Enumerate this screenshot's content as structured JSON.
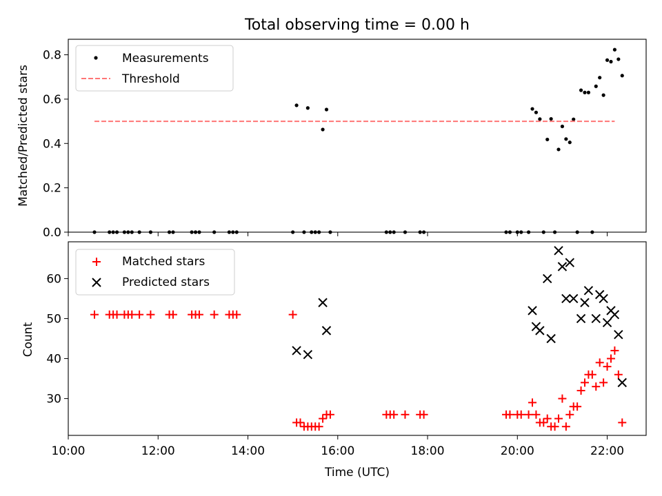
{
  "chart_data": [
    {
      "type": "scatter",
      "title": "Total observing time = 0.00 h",
      "xlabel": "",
      "ylabel": "Matched/Predicted stars",
      "xlim": [
        "10:00",
        "22:52"
      ],
      "ylim": [
        0,
        0.87
      ],
      "yticks": [
        0.0,
        0.2,
        0.4,
        0.6,
        0.8
      ],
      "ytick_labels": [
        "0.0",
        "0.2",
        "0.4",
        "0.6",
        "0.8"
      ],
      "legend_position": "upper left",
      "colors": {
        "measurements": "#000000",
        "threshold": "#ff7575"
      },
      "series": [
        {
          "name": "Measurements",
          "kind": "scatter",
          "marker": "dot",
          "points": [
            [
              "10:35",
              0
            ],
            [
              "10:55",
              0
            ],
            [
              "11:00",
              0
            ],
            [
              "11:05",
              0
            ],
            [
              "11:15",
              0
            ],
            [
              "11:20",
              0
            ],
            [
              "11:25",
              0
            ],
            [
              "11:35",
              0
            ],
            [
              "11:50",
              0
            ],
            [
              "12:15",
              0
            ],
            [
              "12:20",
              0
            ],
            [
              "12:45",
              0
            ],
            [
              "12:50",
              0
            ],
            [
              "12:55",
              0
            ],
            [
              "13:15",
              0
            ],
            [
              "13:35",
              0
            ],
            [
              "13:40",
              0
            ],
            [
              "13:45",
              0
            ],
            [
              "15:00",
              0
            ],
            [
              "15:05",
              0.572
            ],
            [
              "15:15",
              0
            ],
            [
              "15:20",
              0.56
            ],
            [
              "15:25",
              0
            ],
            [
              "15:30",
              0
            ],
            [
              "15:35",
              0
            ],
            [
              "15:40",
              0.463
            ],
            [
              "15:45",
              0.553
            ],
            [
              "15:50",
              0
            ],
            [
              "17:05",
              0
            ],
            [
              "17:10",
              0
            ],
            [
              "17:15",
              0
            ],
            [
              "17:30",
              0
            ],
            [
              "17:50",
              0
            ],
            [
              "17:55",
              0
            ],
            [
              "19:45",
              0
            ],
            [
              "19:50",
              0
            ],
            [
              "20:00",
              0
            ],
            [
              "20:05",
              0
            ],
            [
              "20:15",
              0
            ],
            [
              "20:20",
              0.556
            ],
            [
              "20:25",
              0.54
            ],
            [
              "20:30",
              0.51
            ],
            [
              "20:35",
              0
            ],
            [
              "20:40",
              0.418
            ],
            [
              "20:45",
              0.511
            ],
            [
              "20:50",
              0
            ],
            [
              "20:55",
              0.373
            ],
            [
              "21:00",
              0.477
            ],
            [
              "21:05",
              0.42
            ],
            [
              "21:10",
              0.405
            ],
            [
              "21:15",
              0.509
            ],
            [
              "21:20",
              0
            ],
            [
              "21:25",
              0.64
            ],
            [
              "21:30",
              0.63
            ],
            [
              "21:35",
              0.63
            ],
            [
              "21:40",
              0
            ],
            [
              "21:45",
              0.658
            ],
            [
              "21:50",
              0.697
            ],
            [
              "21:55",
              0.618
            ],
            [
              "22:00",
              0.776
            ],
            [
              "22:05",
              0.769
            ],
            [
              "22:10",
              0.823
            ],
            [
              "22:15",
              0.78
            ],
            [
              "22:20",
              0.706
            ]
          ]
        },
        {
          "name": "Threshold",
          "kind": "line",
          "style": "dashed",
          "points": [
            [
              "10:35",
              0.5
            ],
            [
              "22:10",
              0.5
            ]
          ]
        }
      ]
    },
    {
      "type": "scatter",
      "title": "",
      "xlabel": "Time (UTC)",
      "ylabel": "Count",
      "xlim": [
        "10:00",
        "22:52"
      ],
      "ylim": [
        20.8,
        69.2
      ],
      "yticks": [
        30,
        40,
        50,
        60
      ],
      "ytick_labels": [
        "30",
        "40",
        "50",
        "60"
      ],
      "xticks": [
        "10:00",
        "12:00",
        "14:00",
        "16:00",
        "18:00",
        "20:00",
        "22:00"
      ],
      "xtick_labels": [
        "10:00",
        "12:00",
        "14:00",
        "16:00",
        "18:00",
        "20:00",
        "22:00"
      ],
      "legend_position": "upper left",
      "colors": {
        "matched": "#ff0000",
        "predicted": "#000000"
      },
      "series": [
        {
          "name": "Matched stars",
          "kind": "scatter",
          "marker": "plus",
          "points": [
            [
              "10:35",
              51
            ],
            [
              "10:55",
              51
            ],
            [
              "11:00",
              51
            ],
            [
              "11:05",
              51
            ],
            [
              "11:15",
              51
            ],
            [
              "11:20",
              51
            ],
            [
              "11:25",
              51
            ],
            [
              "11:35",
              51
            ],
            [
              "11:50",
              51
            ],
            [
              "12:15",
              51
            ],
            [
              "12:20",
              51
            ],
            [
              "12:45",
              51
            ],
            [
              "12:50",
              51
            ],
            [
              "12:55",
              51
            ],
            [
              "13:15",
              51
            ],
            [
              "13:35",
              51
            ],
            [
              "13:40",
              51
            ],
            [
              "13:45",
              51
            ],
            [
              "15:00",
              51
            ],
            [
              "15:05",
              24
            ],
            [
              "15:10",
              24
            ],
            [
              "15:15",
              23
            ],
            [
              "15:20",
              23
            ],
            [
              "15:25",
              23
            ],
            [
              "15:30",
              23
            ],
            [
              "15:35",
              23
            ],
            [
              "15:40",
              25
            ],
            [
              "15:45",
              26
            ],
            [
              "15:50",
              26
            ],
            [
              "17:05",
              26
            ],
            [
              "17:10",
              26
            ],
            [
              "17:15",
              26
            ],
            [
              "17:30",
              26
            ],
            [
              "17:50",
              26
            ],
            [
              "17:55",
              26
            ],
            [
              "19:45",
              26
            ],
            [
              "19:50",
              26
            ],
            [
              "20:00",
              26
            ],
            [
              "20:05",
              26
            ],
            [
              "20:15",
              26
            ],
            [
              "20:20",
              29
            ],
            [
              "20:25",
              26
            ],
            [
              "20:30",
              24
            ],
            [
              "20:35",
              24
            ],
            [
              "20:40",
              25
            ],
            [
              "20:45",
              23
            ],
            [
              "20:50",
              23
            ],
            [
              "20:55",
              25
            ],
            [
              "21:00",
              30
            ],
            [
              "21:05",
              23
            ],
            [
              "21:10",
              26
            ],
            [
              "21:15",
              28
            ],
            [
              "21:20",
              28
            ],
            [
              "21:25",
              32
            ],
            [
              "21:30",
              34
            ],
            [
              "21:35",
              36
            ],
            [
              "21:40",
              36
            ],
            [
              "21:45",
              33
            ],
            [
              "21:50",
              39
            ],
            [
              "21:55",
              34
            ],
            [
              "22:00",
              38
            ],
            [
              "22:05",
              40
            ],
            [
              "22:10",
              42
            ],
            [
              "22:15",
              36
            ],
            [
              "22:20",
              24
            ]
          ]
        },
        {
          "name": "Predicted stars",
          "kind": "scatter",
          "marker": "x",
          "points": [
            [
              "15:05",
              42
            ],
            [
              "15:20",
              41
            ],
            [
              "15:40",
              54
            ],
            [
              "15:45",
              47
            ],
            [
              "20:20",
              52
            ],
            [
              "20:25",
              48
            ],
            [
              "20:30",
              47
            ],
            [
              "20:40",
              60
            ],
            [
              "20:45",
              45
            ],
            [
              "20:55",
              67
            ],
            [
              "21:00",
              63
            ],
            [
              "21:05",
              55
            ],
            [
              "21:10",
              64
            ],
            [
              "21:15",
              55
            ],
            [
              "21:25",
              50
            ],
            [
              "21:30",
              54
            ],
            [
              "21:35",
              57
            ],
            [
              "21:45",
              50
            ],
            [
              "21:50",
              56
            ],
            [
              "21:55",
              55
            ],
            [
              "22:00",
              49
            ],
            [
              "22:05",
              52
            ],
            [
              "22:10",
              51
            ],
            [
              "22:15",
              46
            ],
            [
              "22:20",
              34
            ]
          ]
        }
      ]
    }
  ]
}
